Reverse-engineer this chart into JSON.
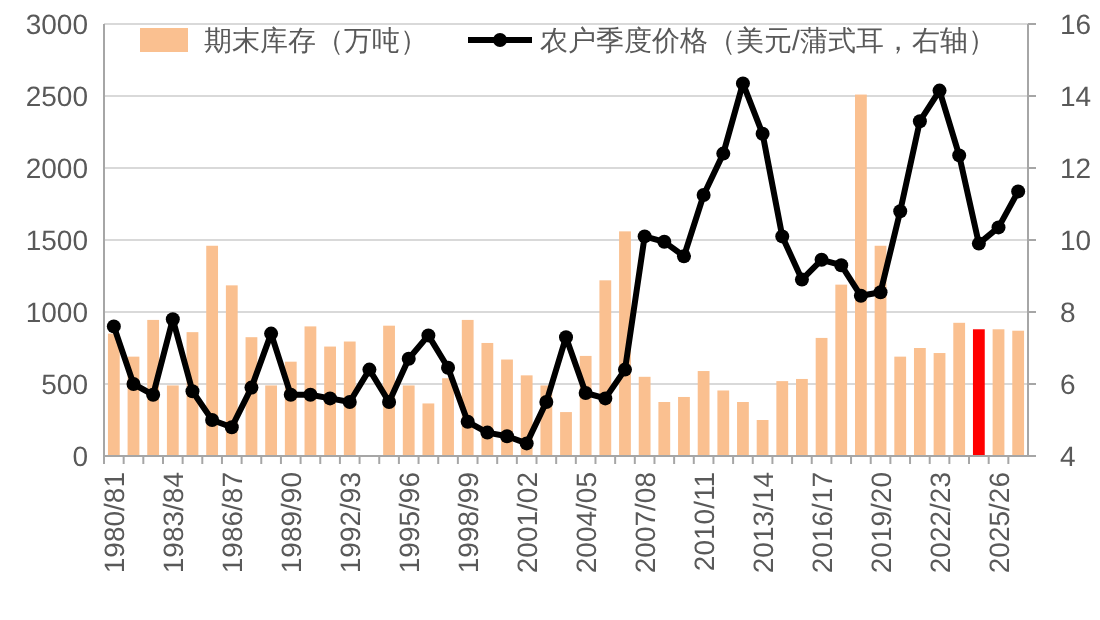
{
  "chart_data": {
    "type": "bar",
    "categories": [
      "1980/81",
      null,
      null,
      "1983/84",
      null,
      null,
      "1986/87",
      null,
      null,
      "1989/90",
      null,
      null,
      "1992/93",
      null,
      null,
      "1995/96",
      null,
      null,
      "1998/99",
      null,
      null,
      "2001/02",
      null,
      null,
      "2004/05",
      null,
      null,
      "2007/08",
      null,
      null,
      "2010/11",
      null,
      null,
      "2013/14",
      null,
      null,
      "2016/17",
      null,
      null,
      "2019/20",
      null,
      null,
      "2022/23",
      null,
      null,
      "2025/26",
      null
    ],
    "series": [
      {
        "name": "期末库存（万吨）",
        "color": "#fac090",
        "colors": [
          "#fac090",
          "#fac090",
          "#fac090",
          "#fac090",
          "#fac090",
          "#fac090",
          "#fac090",
          "#fac090",
          "#fac090",
          "#fac090",
          "#fac090",
          "#fac090",
          "#fac090",
          null,
          "#fac090",
          "#fac090",
          "#fac090",
          "#fac090",
          "#fac090",
          "#fac090",
          "#fac090",
          "#fac090",
          "#fac090",
          "#fac090",
          "#fac090",
          "#fac090",
          "#fac090",
          "#fac090",
          "#fac090",
          "#fac090",
          "#fac090",
          "#fac090",
          "#fac090",
          "#fac090",
          "#fac090",
          "#fac090",
          "#fac090",
          "#fac090",
          "#fac090",
          "#fac090",
          "#fac090",
          "#fac090",
          "#fac090",
          "#fac090",
          "#ff0000",
          "#fac090",
          "#fac090"
        ],
        "values": [
          850,
          690,
          945,
          490,
          860,
          1460,
          1185,
          825,
          490,
          655,
          900,
          760,
          795,
          null,
          905,
          490,
          365,
          540,
          945,
          785,
          670,
          560,
          490,
          305,
          695,
          1220,
          1560,
          550,
          375,
          410,
          590,
          455,
          375,
          250,
          520,
          535,
          820,
          1190,
          2510,
          1460,
          690,
          750,
          715,
          925,
          880,
          880,
          870
        ]
      },
      {
        "name": "农户季度价格（美元/蒲式耳，右轴）",
        "type": "line",
        "axis": "y2",
        "color": "#000000",
        "marker": "circle",
        "values": [
          7.6,
          6.0,
          5.7,
          7.8,
          5.8,
          5.0,
          4.8,
          5.9,
          7.4,
          5.7,
          5.7,
          5.6,
          5.5,
          6.4,
          5.5,
          6.7,
          7.35,
          6.45,
          4.95,
          4.65,
          4.55,
          4.35,
          5.5,
          7.3,
          5.75,
          5.6,
          6.4,
          10.1,
          9.95,
          9.55,
          11.25,
          12.4,
          14.35,
          12.95,
          10.1,
          8.9,
          9.45,
          9.3,
          8.45,
          8.55,
          10.8,
          13.3,
          14.15,
          12.35,
          9.9,
          10.35,
          11.35
        ]
      }
    ],
    "ylim": [
      0,
      3000
    ],
    "yticks": [
      0,
      500,
      1000,
      1500,
      2000,
      2500,
      3000
    ],
    "y2lim": [
      4,
      16
    ],
    "y2ticks": [
      4,
      6,
      8,
      10,
      12,
      14,
      16
    ],
    "grid": "y",
    "legend": "top"
  }
}
